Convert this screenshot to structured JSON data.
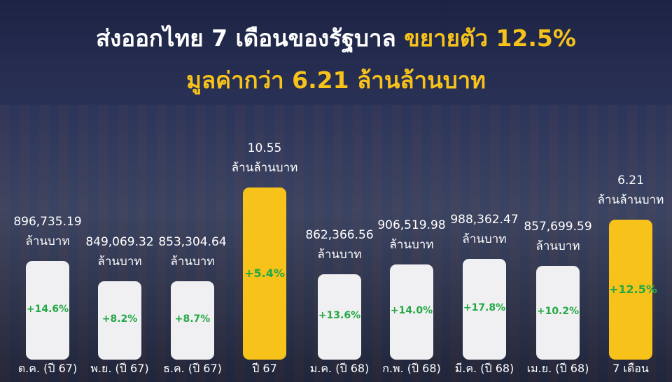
{
  "header": {
    "title_part1": "ส่งออกไทย 7 เดือนของรัฐบาล",
    "title_part2": "ขยายตัว 12.5%",
    "subtitle": "มูลค่ากว่า 6.21 ล้านล้านบาท"
  },
  "items": [
    {
      "value": "896,735.19",
      "unit": "ล้านบาท",
      "growth": "+14.6%",
      "label": "ต.ค. (ปี 67)"
    },
    {
      "value": "849,069.32",
      "unit": "ล้านบาท",
      "growth": "+8.2%",
      "label": "พ.ย. (ปี 67)"
    },
    {
      "value": "853,304.64",
      "unit": "ล้านบาท",
      "growth": "+8.7%",
      "label": "ธ.ค. (ปี 67)"
    },
    {
      "value": "10.55",
      "unit": "ล้านล้านบาท",
      "growth": "+5.4%",
      "label": "ปี 67"
    },
    {
      "value": "862,366.56",
      "unit": "ล้านบาท",
      "growth": "+13.6%",
      "label": "ม.ค. (ปี 68)"
    },
    {
      "value": "906,519.98",
      "unit": "ล้านบาท",
      "growth": "+14.0%",
      "label": "ก.พ. (ปี 68)"
    },
    {
      "value": "988,362.47",
      "unit": "ล้านบาท",
      "growth": "+17.8%",
      "label": "มี.ค. (ปี 68)"
    },
    {
      "value": "857,699.59",
      "unit": "ล้านบาท",
      "growth": "+10.2%",
      "label": "เม.ย. (ปี 68)"
    },
    {
      "value": "6.21",
      "unit": "ล้านล้านบาท",
      "growth": "+12.5%",
      "label": "7 เดือน"
    }
  ]
}
